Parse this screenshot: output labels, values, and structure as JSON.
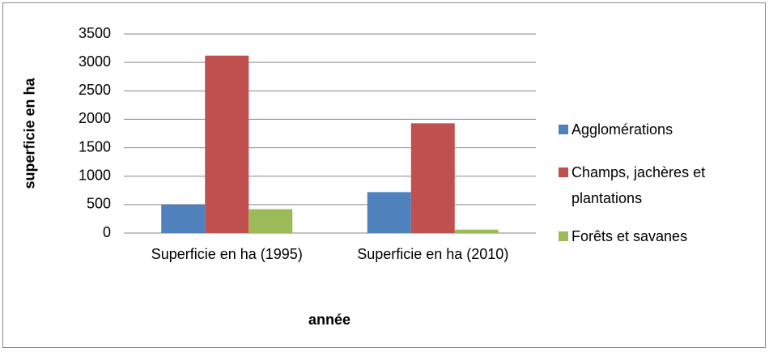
{
  "chart_data": {
    "type": "bar",
    "xlabel": "année",
    "ylabel": "superficie en ha",
    "categories": [
      "Superficie en ha (1995)",
      "Superficie en ha (2010)"
    ],
    "series": [
      {
        "name": "Agglomérations",
        "color": "#4f81bd",
        "values": [
          500,
          720
        ]
      },
      {
        "name": "Champs, jachères et plantations",
        "color": "#c0504d",
        "values": [
          3120,
          1930
        ]
      },
      {
        "name": "Forêts et savanes",
        "color": "#9bbb59",
        "values": [
          420,
          60
        ]
      }
    ],
    "ylim": [
      0,
      3500
    ],
    "yticks": [
      0,
      500,
      1000,
      1500,
      2000,
      2500,
      3000,
      3500
    ],
    "grid": true,
    "legend": "right"
  }
}
